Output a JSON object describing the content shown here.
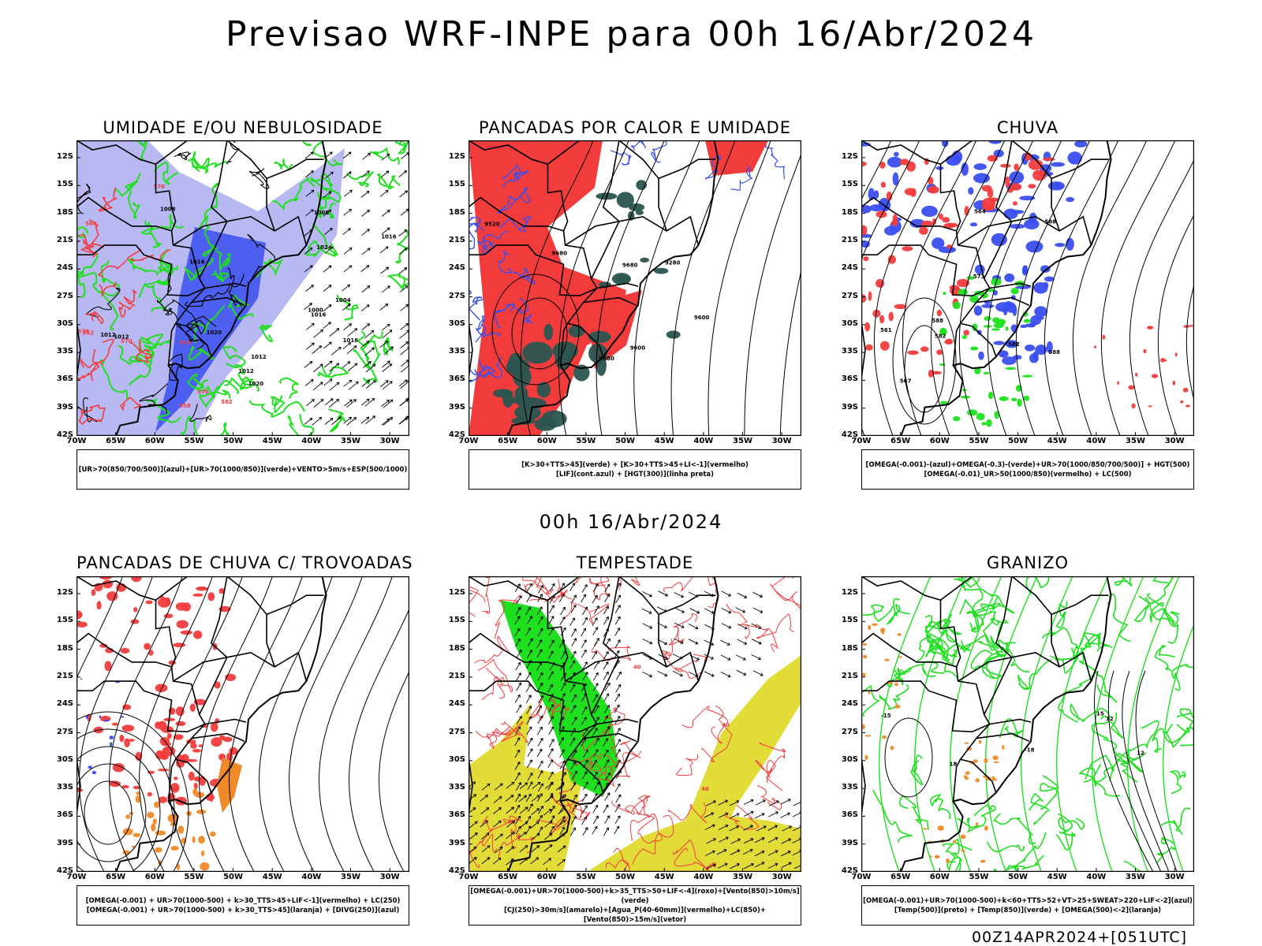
{
  "main_title": "Previsao WRF-INPE  para 00h 16/Abr/2024",
  "mid_title": "00h 16/Abr/2024",
  "footer": "00Z14APR2024+[051UTC]",
  "axes": {
    "lat_labels": [
      "12S",
      "15S",
      "18S",
      "21S",
      "24S",
      "27S",
      "30S",
      "33S",
      "36S",
      "39S",
      "42S"
    ],
    "lon_labels": [
      "70W",
      "65W",
      "60W",
      "55W",
      "50W",
      "45W",
      "40W",
      "35W",
      "30W"
    ]
  },
  "colors": {
    "blue": "#3a4ff0",
    "light_blue": "#b8b8f2",
    "green": "#1ee01e",
    "red": "#f23c3c",
    "dark_teal": "#2a5550",
    "orange": "#f08a28",
    "yellow": "#e2dc38"
  },
  "panels": [
    {
      "id": "umidade",
      "title": "UMIDADE E/OU NEBULOSIDADE",
      "legend": [
        "[UR>70(850/700/500)](azul)+[UR>70(1000/850)](verde)+VENTO>5m/s+ESP(500/1000)"
      ],
      "contour_labels": [
        "1012",
        "1012",
        "1016",
        "1020",
        "1020",
        "1016",
        "1012",
        "1016",
        "1012",
        "1008",
        "1004",
        "1008",
        "1016",
        "1024",
        "1000",
        "570",
        "576",
        "582",
        "552",
        "558",
        "564",
        "570",
        "576",
        "570"
      ]
    },
    {
      "id": "pancadas_calor",
      "title": "PANCADAS POR CALOR E UMIDADE",
      "legend": [
        "[K>30+TTS>45](verde) + [K>30+TTS>45+LI<-1](vermelho)",
        "[LIF](cont.azul) + [HGT(300)](linha preta)"
      ],
      "contour_labels": [
        "9680",
        "9600",
        "9520",
        "9680",
        "9680",
        "9280",
        "9600"
      ]
    },
    {
      "id": "chuva",
      "title": "CHUVA",
      "legend": [
        "[OMEGA(-0.001)-(azul)+OMEGA(-0.3)-(verde)+UR>70(1000/850/700/500)] + HGT(500)",
        "[OMEGA(-0.01)_UR>50(1000/850)(vermelho) + LC(500)"
      ],
      "contour_labels": [
        "588",
        "588",
        "582",
        "573",
        "567",
        "561",
        "564",
        "582",
        "588"
      ]
    },
    {
      "id": "pancadas_trovoadas",
      "title": "PANCADAS DE CHUVA C/ TROVOADAS",
      "legend": [
        "[OMEGA(-0.001) + UR>70(1000-500) + k>30_TTS>45+LIF<-1](vermelho) + LC(250)",
        "[OMEGA(-0.001) + UR>70(1000-500) + k>30_TTS>45](laranja) + [DIVG(250)](azul)"
      ],
      "contour_labels": []
    },
    {
      "id": "tempestade",
      "title": "TEMPESTADE",
      "legend": [
        "[OMEGA(-0.001)+UR>70(1000-500)+k>35_TTS>50+LIF<-4](roxo)+[Vento(850)>10m/s](verde)",
        "[CJ(250)>30m/s](amarelo)+[Agua_P(40-60mm)](vermelho)+LC(850)+[Vento(850)>15m/s](vetor)"
      ],
      "contour_labels": [
        "40",
        "40",
        "40"
      ]
    },
    {
      "id": "granizo",
      "title": "GRANIZO",
      "legend": [
        "[OMEGA(-0.001)+UR>70(1000-500)+k<60+TTS>52+VT>25+SWEAT>220+LIF<-2](azul)",
        "[Temp(500)](preto) + [Temp(850)](verde) + [OMEGA(500)<-2](laranja)"
      ],
      "contour_labels": [
        "-15",
        "-18",
        "12",
        "15",
        "18",
        "12"
      ]
    }
  ]
}
